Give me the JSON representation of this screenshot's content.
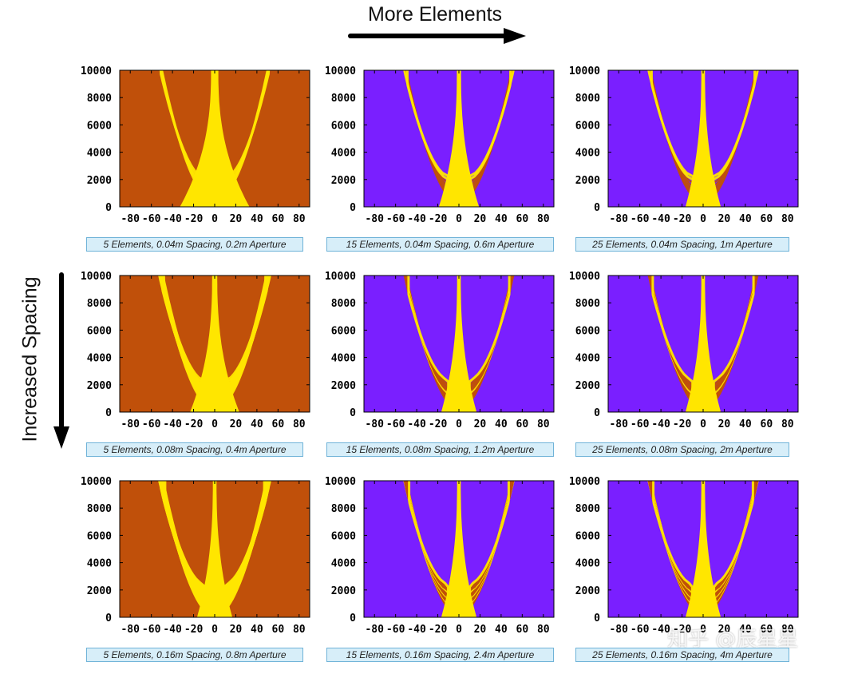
{
  "top_title": "More Elements",
  "side_title": "Increased Spacing",
  "watermark": "知乎 @辰星星",
  "colors": {
    "background": "#7a1fff",
    "band": "#c0500a",
    "peak": "#ffe600",
    "caption_bg": "#d7eef9",
    "caption_border": "#6fb3d8"
  },
  "chart_data": [
    {
      "type": "heatmap",
      "caption": "5 Elements, 0.04m Spacing, 0.2m Aperture",
      "elements": 5,
      "spacing": 0.04,
      "aperture": 0.2,
      "x_ticks": [
        "-80",
        "-60",
        "-40",
        "-20",
        "0",
        "20",
        "40",
        "60",
        "80"
      ],
      "y_ticks": [
        "0",
        "2000",
        "4000",
        "6000",
        "8000",
        "10000"
      ],
      "xlim": [
        -90,
        90
      ],
      "ylim": [
        0,
        10000
      ]
    },
    {
      "type": "heatmap",
      "caption": "15 Elements, 0.04m Spacing, 0.6m Aperture",
      "elements": 15,
      "spacing": 0.04,
      "aperture": 0.6,
      "x_ticks": [
        "-80",
        "-60",
        "-40",
        "-20",
        "0",
        "20",
        "40",
        "60",
        "80"
      ],
      "y_ticks": [
        "0",
        "2000",
        "4000",
        "6000",
        "8000",
        "10000"
      ],
      "xlim": [
        -90,
        90
      ],
      "ylim": [
        0,
        10000
      ]
    },
    {
      "type": "heatmap",
      "caption": "25 Elements, 0.04m Spacing, 1m Aperture",
      "elements": 25,
      "spacing": 0.04,
      "aperture": 1,
      "x_ticks": [
        "-80",
        "-60",
        "-40",
        "-20",
        "0",
        "20",
        "40",
        "60",
        "80"
      ],
      "y_ticks": [
        "0",
        "2000",
        "4000",
        "6000",
        "8000",
        "10000"
      ],
      "xlim": [
        -90,
        90
      ],
      "ylim": [
        0,
        10000
      ]
    },
    {
      "type": "heatmap",
      "caption": "5 Elements, 0.08m Spacing, 0.4m Aperture",
      "elements": 5,
      "spacing": 0.08,
      "aperture": 0.4,
      "x_ticks": [
        "-80",
        "-60",
        "-40",
        "-20",
        "0",
        "20",
        "40",
        "60",
        "80"
      ],
      "y_ticks": [
        "0",
        "2000",
        "4000",
        "6000",
        "8000",
        "10000"
      ],
      "xlim": [
        -90,
        90
      ],
      "ylim": [
        0,
        10000
      ]
    },
    {
      "type": "heatmap",
      "caption": "15 Elements, 0.08m Spacing, 1.2m Aperture",
      "elements": 15,
      "spacing": 0.08,
      "aperture": 1.2,
      "x_ticks": [
        "-80",
        "-60",
        "-40",
        "-20",
        "0",
        "20",
        "40",
        "60",
        "80"
      ],
      "y_ticks": [
        "0",
        "2000",
        "4000",
        "6000",
        "8000",
        "10000"
      ],
      "xlim": [
        -90,
        90
      ],
      "ylim": [
        0,
        10000
      ]
    },
    {
      "type": "heatmap",
      "caption": "25 Elements, 0.08m Spacing, 2m Aperture",
      "elements": 25,
      "spacing": 0.08,
      "aperture": 2,
      "x_ticks": [
        "-80",
        "-60",
        "-40",
        "-20",
        "0",
        "20",
        "40",
        "60",
        "80"
      ],
      "y_ticks": [
        "0",
        "2000",
        "4000",
        "6000",
        "8000",
        "10000"
      ],
      "xlim": [
        -90,
        90
      ],
      "ylim": [
        0,
        10000
      ]
    },
    {
      "type": "heatmap",
      "caption": "5 Elements, 0.16m Spacing, 0.8m Aperture",
      "elements": 5,
      "spacing": 0.16,
      "aperture": 0.8,
      "x_ticks": [
        "-80",
        "-60",
        "-40",
        "-20",
        "0",
        "20",
        "40",
        "60",
        "80"
      ],
      "y_ticks": [
        "0",
        "2000",
        "4000",
        "6000",
        "8000",
        "10000"
      ],
      "xlim": [
        -90,
        90
      ],
      "ylim": [
        0,
        10000
      ]
    },
    {
      "type": "heatmap",
      "caption": "15 Elements, 0.16m Spacing, 2.4m Aperture",
      "elements": 15,
      "spacing": 0.16,
      "aperture": 2.4,
      "x_ticks": [
        "-80",
        "-60",
        "-40",
        "-20",
        "0",
        "20",
        "40",
        "60",
        "80"
      ],
      "y_ticks": [
        "0",
        "2000",
        "4000",
        "6000",
        "8000",
        "10000"
      ],
      "xlim": [
        -90,
        90
      ],
      "ylim": [
        0,
        10000
      ]
    },
    {
      "type": "heatmap",
      "caption": "25 Elements, 0.16m Spacing, 4m Aperture",
      "elements": 25,
      "spacing": 0.16,
      "aperture": 4,
      "x_ticks": [
        "-80",
        "-60",
        "-40",
        "-20",
        "0",
        "20",
        "40",
        "60",
        "80"
      ],
      "y_ticks": [
        "0",
        "2000",
        "4000",
        "6000",
        "8000",
        "10000"
      ],
      "xlim": [
        -90,
        90
      ],
      "ylim": [
        0,
        10000
      ]
    }
  ]
}
